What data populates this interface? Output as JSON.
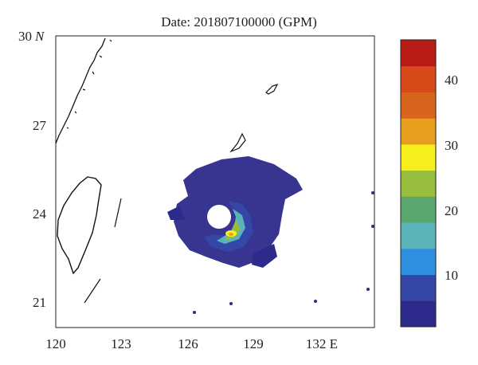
{
  "title": "Date: 201807100000 (GPM)",
  "axes": {
    "x_ticks": [
      "120",
      "123",
      "126",
      "129",
      "132 E"
    ],
    "y_ticks": [
      {
        "value": "30",
        "suffix": "N"
      },
      {
        "value": "27",
        "suffix": ""
      },
      {
        "value": "24",
        "suffix": ""
      },
      {
        "value": "21",
        "suffix": ""
      }
    ]
  },
  "colorbar": {
    "tick_labels": [
      "10",
      "20",
      "30",
      "40"
    ],
    "colors": [
      "#2c2a8a",
      "#3646a6",
      "#2f8fe0",
      "#5ab3b8",
      "#5aa86f",
      "#97be3c",
      "#f7ef1c",
      "#e6a01e",
      "#d9641c",
      "#d94a1a",
      "#b81c14"
    ]
  },
  "chart_data": {
    "type": "map",
    "title": "Date: 201807100000 (GPM)",
    "lon_range": [
      120,
      135
    ],
    "lat_range": [
      20,
      30
    ],
    "colorbar_range": [
      1,
      46
    ],
    "colorbar_ticks": [
      10,
      20,
      30,
      40
    ]
  }
}
